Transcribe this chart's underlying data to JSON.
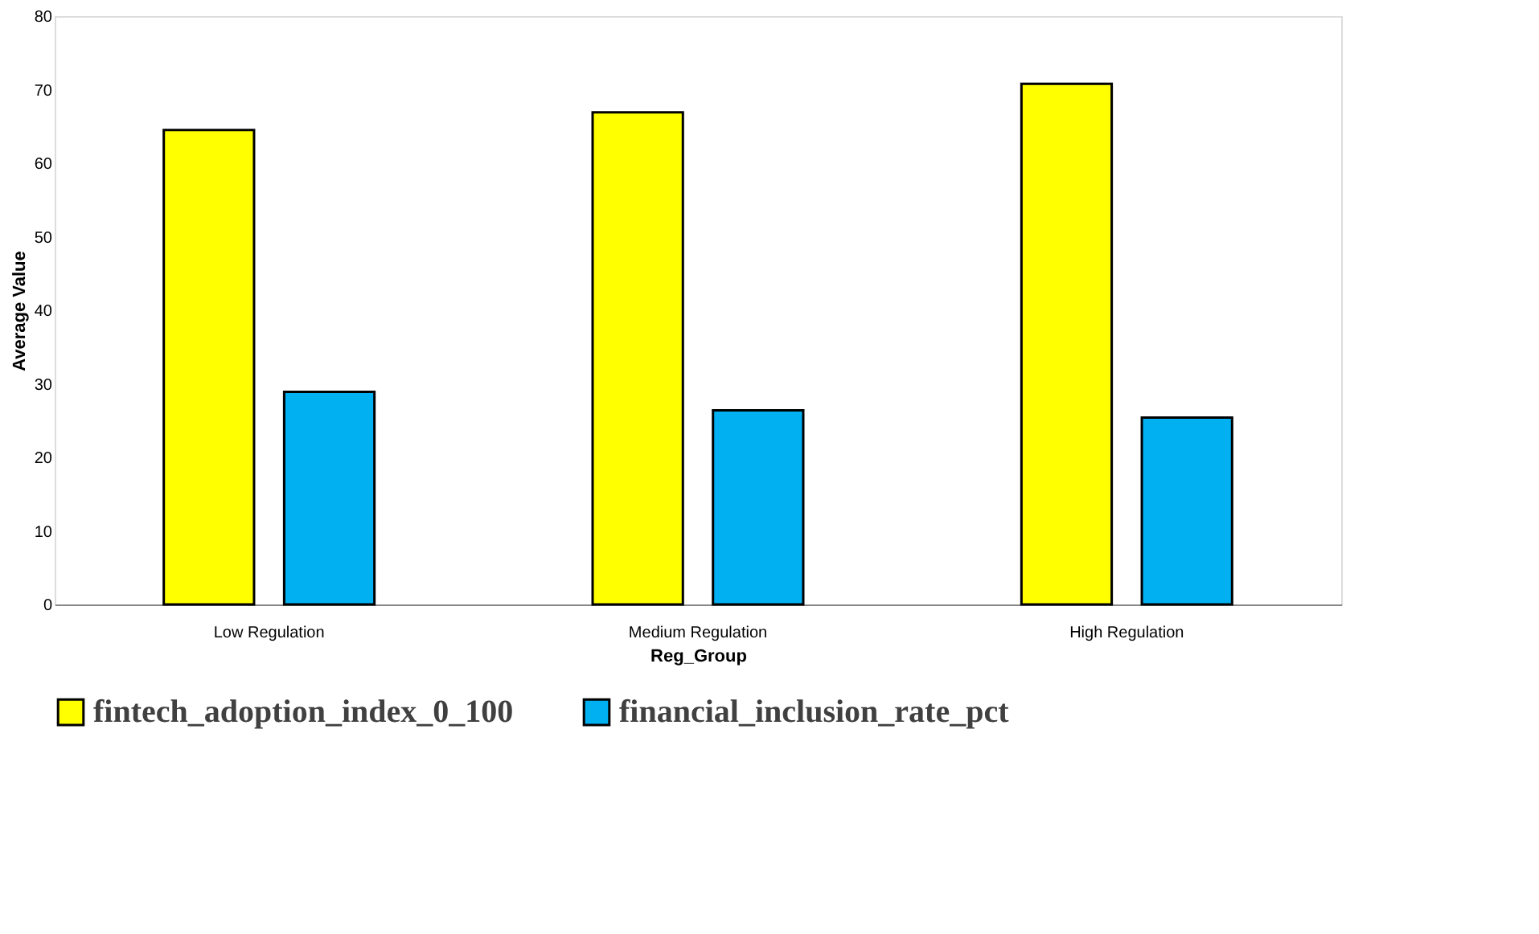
{
  "chart_data": {
    "type": "bar",
    "xlabel": "Reg_Group",
    "ylabel": "Average Value",
    "categories": [
      "Low Regulation",
      "Medium Regulation",
      "High Regulation"
    ],
    "series": [
      {
        "name": "fintech_adoption_index_0_100",
        "color": "#ffff00",
        "values": [
          64.5,
          66.9,
          70.8
        ]
      },
      {
        "name": "financial_inclusion_rate_pct",
        "color": "#00b0f0",
        "values": [
          28.9,
          26.4,
          25.4
        ]
      }
    ],
    "ylim": [
      0,
      80
    ],
    "yticks": [
      0,
      10,
      20,
      30,
      40,
      50,
      60,
      70,
      80
    ],
    "grid": false,
    "legend": "bottom"
  }
}
